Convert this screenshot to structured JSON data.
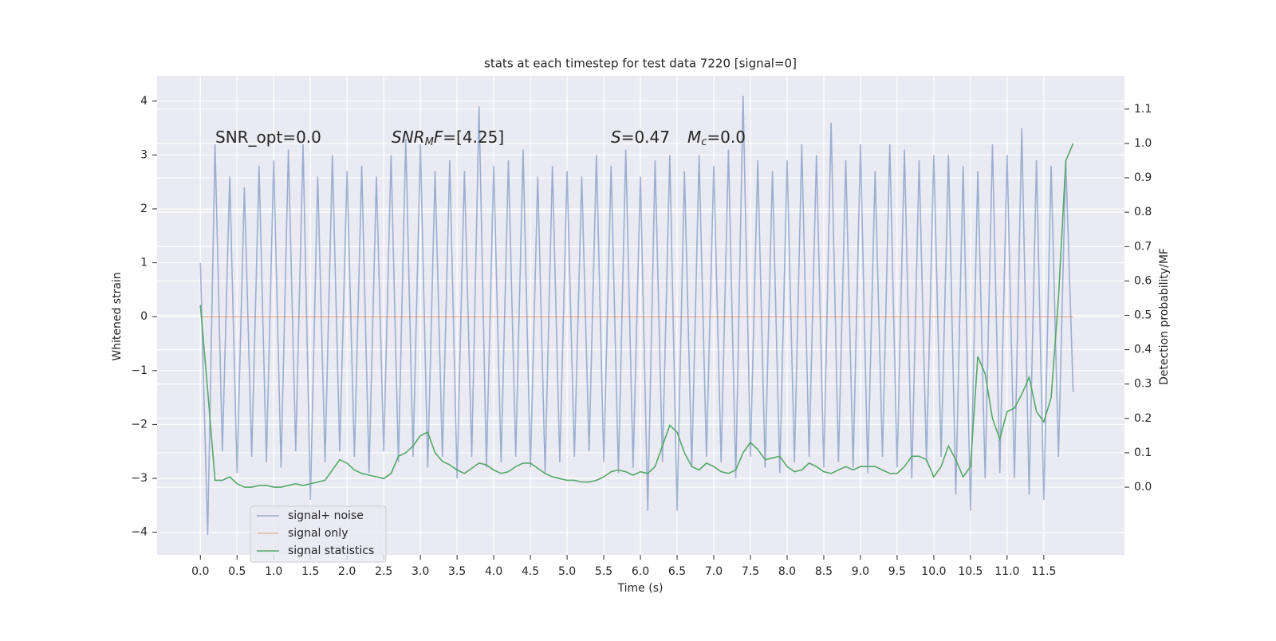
{
  "chart_data": {
    "type": "line",
    "title": "stats at each timestep for test data 7220 [signal=0]",
    "xlabel": "Time (s)",
    "ylabel": "Whitened strain",
    "y2label": "Detection probability/MF",
    "annotations": [
      {
        "parts": [
          {
            "text": "SNR_opt=0.0"
          }
        ]
      },
      {
        "parts": [
          {
            "text": "SNR",
            "style": "italic"
          },
          {
            "text": "M",
            "style": "italic-sub"
          },
          {
            "text": "F",
            "style": "italic"
          },
          {
            "text": "=[4.25]"
          }
        ]
      },
      {
        "parts": [
          {
            "text": "S",
            "style": "italic"
          },
          {
            "text": "=0.47"
          },
          {
            "text": "M",
            "style": "italic-gap"
          },
          {
            "text": "c",
            "style": "italic-sub"
          },
          {
            "text": "=0.0"
          }
        ]
      }
    ],
    "x": [
      0.0,
      0.1,
      0.2,
      0.3,
      0.4,
      0.5,
      0.6,
      0.7,
      0.8,
      0.9,
      1.0,
      1.1,
      1.2,
      1.3,
      1.4,
      1.5,
      1.6,
      1.7,
      1.8,
      1.9,
      2.0,
      2.1,
      2.2,
      2.3,
      2.4,
      2.5,
      2.6,
      2.7,
      2.8,
      2.9,
      3.0,
      3.1,
      3.2,
      3.3,
      3.4,
      3.5,
      3.6,
      3.7,
      3.8,
      3.9,
      4.0,
      4.1,
      4.2,
      4.3,
      4.4,
      4.5,
      4.6,
      4.7,
      4.8,
      4.9,
      5.0,
      5.1,
      5.2,
      5.3,
      5.4,
      5.5,
      5.6,
      5.7,
      5.8,
      5.9,
      6.0,
      6.1,
      6.2,
      6.3,
      6.4,
      6.5,
      6.6,
      6.7,
      6.8,
      6.9,
      7.0,
      7.1,
      7.2,
      7.3,
      7.4,
      7.5,
      7.6,
      7.7,
      7.8,
      7.9,
      8.0,
      8.1,
      8.2,
      8.3,
      8.4,
      8.5,
      8.6,
      8.7,
      8.8,
      8.9,
      9.0,
      9.1,
      9.2,
      9.3,
      9.4,
      9.5,
      9.6,
      9.7,
      9.8,
      9.9,
      10.0,
      10.1,
      10.2,
      10.3,
      10.4,
      10.5,
      10.6,
      10.7,
      10.8,
      10.9,
      11.0,
      11.1,
      11.2,
      11.3,
      11.4,
      11.5,
      11.6,
      11.7,
      11.8,
      11.9
    ],
    "series": [
      {
        "name": "signal+ noise",
        "color": "#4c72b0",
        "opacity": 0.5,
        "values": [
          1.0,
          -4.05,
          3.2,
          -2.5,
          2.6,
          -2.9,
          2.4,
          -2.6,
          2.8,
          -2.7,
          2.9,
          -2.8,
          3.1,
          -2.5,
          3.2,
          -3.4,
          2.6,
          -2.7,
          3.0,
          -2.5,
          2.7,
          -2.6,
          2.8,
          -2.9,
          2.6,
          -2.5,
          3.0,
          -2.7,
          3.3,
          -2.6,
          3.2,
          -2.8,
          2.7,
          -2.6,
          2.9,
          -3.0,
          2.7,
          -2.6,
          3.9,
          -2.8,
          2.8,
          -2.7,
          2.9,
          -2.6,
          3.1,
          -2.8,
          2.6,
          -2.9,
          2.8,
          -2.7,
          2.7,
          -2.6,
          2.6,
          -2.5,
          3.0,
          -2.7,
          2.8,
          -2.9,
          3.1,
          -2.8,
          2.6,
          -3.6,
          2.9,
          -2.7,
          3.0,
          -3.6,
          2.7,
          -2.8,
          3.0,
          -2.6,
          2.8,
          -2.7,
          3.1,
          -3.0,
          4.1,
          -2.6,
          2.9,
          -2.8,
          2.7,
          -2.9,
          2.9,
          -2.7,
          3.2,
          -2.6,
          3.0,
          -2.8,
          3.6,
          -2.7,
          2.9,
          -2.8,
          3.2,
          -2.9,
          2.7,
          -2.6,
          3.2,
          -2.8,
          3.1,
          -3.0,
          2.9,
          -2.7,
          3.0,
          -2.6,
          3.0,
          -3.3,
          2.8,
          -3.6,
          2.7,
          -3.0,
          3.2,
          -2.9,
          3.0,
          -3.0,
          3.5,
          -3.3,
          2.9,
          -3.4,
          2.8,
          -2.6,
          2.9,
          -1.4
        ]
      },
      {
        "name": "signal only",
        "color": "#dd8452",
        "opacity": 0.5,
        "x": [
          0.0,
          11.9
        ],
        "values": [
          0,
          0
        ]
      },
      {
        "name": "signal statistics",
        "color": "#55a868",
        "opacity": 1,
        "axis": "y2",
        "values": [
          0.53,
          0.28,
          0.02,
          0.02,
          0.03,
          0.01,
          0.0,
          0.0,
          0.005,
          0.005,
          0.0,
          0.0,
          0.005,
          0.01,
          0.005,
          0.01,
          0.015,
          0.02,
          0.05,
          0.08,
          0.07,
          0.05,
          0.04,
          0.035,
          0.03,
          0.025,
          0.04,
          0.09,
          0.1,
          0.12,
          0.15,
          0.16,
          0.1,
          0.075,
          0.065,
          0.05,
          0.04,
          0.055,
          0.07,
          0.065,
          0.05,
          0.04,
          0.045,
          0.06,
          0.07,
          0.07,
          0.055,
          0.04,
          0.03,
          0.025,
          0.02,
          0.02,
          0.015,
          0.015,
          0.02,
          0.03,
          0.045,
          0.05,
          0.045,
          0.035,
          0.045,
          0.04,
          0.06,
          0.12,
          0.18,
          0.16,
          0.1,
          0.06,
          0.05,
          0.07,
          0.06,
          0.045,
          0.04,
          0.05,
          0.1,
          0.13,
          0.11,
          0.08,
          0.085,
          0.09,
          0.06,
          0.045,
          0.05,
          0.07,
          0.06,
          0.045,
          0.04,
          0.05,
          0.06,
          0.05,
          0.06,
          0.06,
          0.06,
          0.05,
          0.04,
          0.04,
          0.06,
          0.09,
          0.09,
          0.08,
          0.03,
          0.06,
          0.12,
          0.08,
          0.03,
          0.06,
          0.38,
          0.33,
          0.2,
          0.14,
          0.22,
          0.23,
          0.27,
          0.32,
          0.22,
          0.19,
          0.26,
          0.55,
          0.95,
          1.0
        ]
      }
    ],
    "xlim": [
      -0.59,
      12.6
    ],
    "xticks": [
      {
        "value": 0,
        "label": "0.0"
      },
      0.5,
      {
        "value": 1,
        "label": "1.0"
      },
      1.5,
      {
        "value": 2,
        "label": "2.0"
      },
      2.5,
      {
        "value": 3,
        "label": "3.0"
      },
      3.5,
      {
        "value": 4,
        "label": "4.0"
      },
      4.5,
      {
        "value": 5,
        "label": "5.0"
      },
      5.5,
      {
        "value": 6,
        "label": "6.0"
      },
      6.5,
      {
        "value": 7,
        "label": "7.0"
      },
      7.5,
      {
        "value": 8,
        "label": "8.0"
      },
      8.5,
      {
        "value": 9,
        "label": "9.0"
      },
      9.5,
      {
        "value": 10,
        "label": "10.0"
      },
      10.5,
      {
        "value": 11,
        "label": "11.0"
      },
      11.5
    ],
    "ylim": [
      -4.42,
      4.47
    ],
    "yticks": [
      {
        "value": -4,
        "label": "−4"
      },
      {
        "value": -3,
        "label": "−3"
      },
      {
        "value": -2,
        "label": "−2"
      },
      {
        "value": -1,
        "label": "−1"
      },
      0,
      1,
      2,
      3,
      4
    ],
    "y2lim": [
      -0.197,
      1.197
    ],
    "y2ticks": [
      {
        "value": 0,
        "label": "0.0"
      },
      0.1,
      0.2,
      0.3,
      0.4,
      0.5,
      0.6,
      0.7,
      0.8,
      0.9,
      {
        "value": 1,
        "label": "1.0"
      },
      1.1
    ],
    "grid": true,
    "legend": "lower left"
  }
}
